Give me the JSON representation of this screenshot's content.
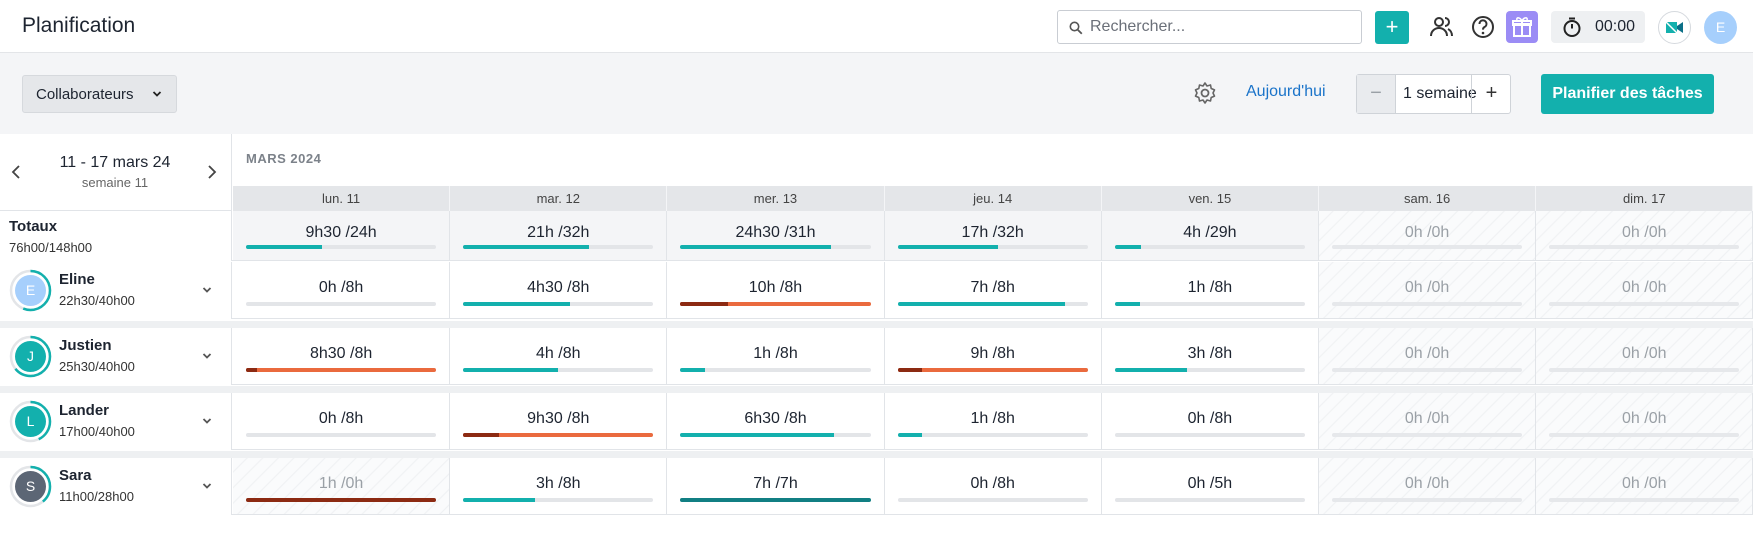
{
  "header": {
    "title": "Planification",
    "search_placeholder": "Rechercher...",
    "add_label": "+",
    "timer": "00:00",
    "user_initial": "E"
  },
  "toolbar": {
    "collaborators_label": "Collaborateurs",
    "today_label": "Aujourd'hui",
    "period_value": "1 semaine",
    "minus_label": "−",
    "plus_label": "+",
    "plan_button": "Planifier des tâches"
  },
  "calendar": {
    "range": "11 - 17 mars 24",
    "week": "semaine 11",
    "month": "MARS 2024",
    "days": [
      "lun. 11",
      "mar. 12",
      "mer. 13",
      "jeu. 14",
      "ven. 15",
      "sam. 16",
      "dim. 17"
    ]
  },
  "colors": {
    "accent": "#13b0ad",
    "overload_dark": "#8c2a12",
    "overload": "#ea6a3e",
    "track": "#e3e5e8",
    "complete": "#117f83"
  },
  "totals": {
    "label": "Totaux",
    "hours": "76h00/148h00",
    "cells": [
      {
        "text": "9h30 /24h",
        "fill": 0.4,
        "status": "normal"
      },
      {
        "text": "21h /32h",
        "fill": 0.66,
        "status": "normal"
      },
      {
        "text": "24h30 /31h",
        "fill": 0.79,
        "status": "normal"
      },
      {
        "text": "17h /32h",
        "fill": 0.53,
        "status": "normal"
      },
      {
        "text": "4h /29h",
        "fill": 0.14,
        "status": "normal"
      },
      {
        "text": "0h /0h",
        "fill": 0,
        "status": "weekend"
      },
      {
        "text": "0h /0h",
        "fill": 0,
        "status": "weekend"
      }
    ]
  },
  "people": [
    {
      "name": "Eline",
      "initial": "E",
      "hours": "22h30/40h00",
      "avatar_color": "#a6cffc",
      "ring": 0.56,
      "cells": [
        {
          "text": "0h /8h",
          "fill": 0,
          "status": "normal"
        },
        {
          "text": "4h30 /8h",
          "fill": 0.56,
          "status": "normal"
        },
        {
          "text": "10h /8h",
          "fill": 1,
          "status": "over",
          "over_part": 0.25
        },
        {
          "text": "7h /8h",
          "fill": 0.88,
          "status": "normal"
        },
        {
          "text": "1h /8h",
          "fill": 0.13,
          "status": "normal"
        },
        {
          "text": "0h /0h",
          "fill": 0,
          "status": "weekend"
        },
        {
          "text": "0h /0h",
          "fill": 0,
          "status": "weekend"
        }
      ]
    },
    {
      "name": "Justien",
      "initial": "J",
      "hours": "25h30/40h00",
      "avatar_color": "#13b0ad",
      "ring": 0.64,
      "cells": [
        {
          "text": "8h30 /8h",
          "fill": 1,
          "status": "over",
          "over_part": 0.06
        },
        {
          "text": "4h /8h",
          "fill": 0.5,
          "status": "normal"
        },
        {
          "text": "1h /8h",
          "fill": 0.13,
          "status": "normal"
        },
        {
          "text": "9h /8h",
          "fill": 1,
          "status": "over",
          "over_part": 0.13
        },
        {
          "text": "3h /8h",
          "fill": 0.38,
          "status": "normal"
        },
        {
          "text": "0h /0h",
          "fill": 0,
          "status": "weekend"
        },
        {
          "text": "0h /0h",
          "fill": 0,
          "status": "weekend"
        }
      ]
    },
    {
      "name": "Lander",
      "initial": "L",
      "hours": "17h00/40h00",
      "avatar_color": "#13b0ad",
      "ring": 0.43,
      "cells": [
        {
          "text": "0h /8h",
          "fill": 0,
          "status": "normal"
        },
        {
          "text": "9h30 /8h",
          "fill": 1,
          "status": "over",
          "over_part": 0.19
        },
        {
          "text": "6h30 /8h",
          "fill": 0.81,
          "status": "normal"
        },
        {
          "text": "1h /8h",
          "fill": 0.13,
          "status": "normal"
        },
        {
          "text": "0h /8h",
          "fill": 0,
          "status": "normal"
        },
        {
          "text": "0h /0h",
          "fill": 0,
          "status": "weekend"
        },
        {
          "text": "0h /0h",
          "fill": 0,
          "status": "weekend"
        }
      ]
    },
    {
      "name": "Sara",
      "initial": "S",
      "hours": "11h00/28h00",
      "avatar_color": "#5c6675",
      "ring": 0.39,
      "cells": [
        {
          "text": "1h /0h",
          "fill": 1,
          "status": "muted-over"
        },
        {
          "text": "3h /8h",
          "fill": 0.38,
          "status": "normal"
        },
        {
          "text": "7h /7h",
          "fill": 1,
          "status": "complete"
        },
        {
          "text": "0h /8h",
          "fill": 0,
          "status": "normal"
        },
        {
          "text": "0h /5h",
          "fill": 0,
          "status": "normal"
        },
        {
          "text": "0h /0h",
          "fill": 0,
          "status": "weekend"
        },
        {
          "text": "0h /0h",
          "fill": 0,
          "status": "weekend"
        }
      ]
    }
  ]
}
